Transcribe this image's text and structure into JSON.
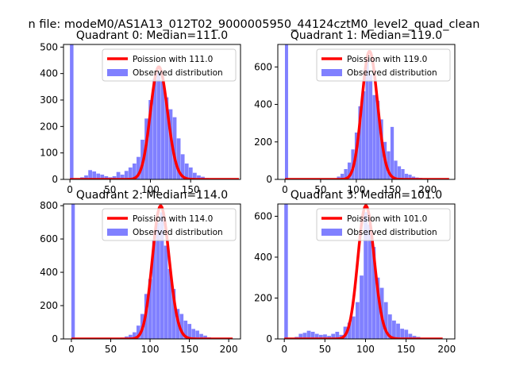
{
  "figure": {
    "suptitle": "n file: modeM0/AS1A13_012T02_9000005950_44124cztM0_level2_quad_clean"
  },
  "colors": {
    "hist": "#8080ff",
    "poisson": "#ff0000",
    "axis": "#000000",
    "background": "#ffffff"
  },
  "chart_data": [
    {
      "type": "bar",
      "title": "Quadrant 0: Median=111.0",
      "median": 111.0,
      "legend": [
        "Poission with 111.0",
        "Observed distribution"
      ],
      "legend_loc": "top-right",
      "xlim": [
        -8,
        212
      ],
      "ylim": [
        0,
        510
      ],
      "xticks": [
        0,
        50,
        100,
        150
      ],
      "yticks": [
        0,
        100,
        200,
        300,
        400,
        500
      ],
      "bin_width": 4.4,
      "zero_bin": 510,
      "bins_x": [
        5,
        10,
        15,
        20,
        25,
        30,
        35,
        40,
        45,
        50,
        55,
        60,
        65,
        70,
        75,
        80,
        85,
        90,
        95,
        100,
        105,
        110,
        115,
        120,
        125,
        130,
        135,
        140,
        145,
        150,
        155,
        160,
        165,
        170,
        175,
        180,
        185,
        190,
        195,
        200,
        205
      ],
      "bins_y": [
        0,
        3,
        8,
        15,
        35,
        30,
        22,
        18,
        12,
        8,
        12,
        28,
        18,
        32,
        45,
        60,
        85,
        150,
        230,
        300,
        380,
        405,
        370,
        310,
        265,
        235,
        155,
        95,
        60,
        45,
        25,
        15,
        10,
        5,
        3,
        2,
        1,
        1,
        0,
        0,
        0
      ],
      "poisson_range": [
        0,
        210
      ],
      "observed_max": 210
    },
    {
      "type": "bar",
      "title": "Quadrant 1: Median=119.0",
      "median": 119.0,
      "legend": [
        "Poission with 119.0",
        "Observed distribution"
      ],
      "legend_loc": "top-right",
      "xlim": [
        -10,
        238
      ],
      "ylim": [
        0,
        720
      ],
      "xticks": [
        0,
        50,
        100,
        150,
        200
      ],
      "yticks": [
        0,
        200,
        400,
        600
      ],
      "bin_width": 4.4,
      "zero_bin": 720,
      "bins_x": [
        70,
        75,
        80,
        85,
        90,
        95,
        100,
        105,
        110,
        115,
        120,
        125,
        130,
        135,
        140,
        145,
        150,
        155,
        160,
        165,
        170,
        175,
        180,
        185,
        190,
        195,
        200
      ],
      "bins_y": [
        5,
        15,
        30,
        55,
        90,
        160,
        250,
        390,
        470,
        650,
        560,
        450,
        420,
        320,
        200,
        150,
        280,
        100,
        70,
        55,
        30,
        25,
        15,
        10,
        8,
        5,
        3
      ],
      "poisson_range": [
        0,
        230
      ],
      "observed_max": 230
    },
    {
      "type": "bar",
      "title": "Quadrant 2: Median=114.0",
      "median": 114.0,
      "legend": [
        "Poission with 114.0",
        "Observed distribution"
      ],
      "legend_loc": "top-right",
      "xlim": [
        -10,
        215
      ],
      "ylim": [
        0,
        810
      ],
      "xticks": [
        0,
        50,
        100,
        150,
        200
      ],
      "yticks": [
        0,
        200,
        400,
        600,
        800
      ],
      "bin_width": 4.4,
      "zero_bin": 810,
      "bins_x": [
        60,
        65,
        70,
        75,
        80,
        85,
        90,
        95,
        100,
        105,
        110,
        115,
        120,
        125,
        130,
        135,
        140,
        145,
        150,
        155,
        160,
        165,
        170,
        175,
        180,
        185,
        190,
        195,
        200
      ],
      "bins_y": [
        3,
        8,
        15,
        25,
        40,
        80,
        150,
        270,
        360,
        590,
        700,
        760,
        560,
        420,
        300,
        180,
        150,
        110,
        90,
        60,
        50,
        30,
        20,
        10,
        5,
        5,
        3,
        1,
        0
      ],
      "poisson_range": [
        0,
        205
      ],
      "observed_max": 205
    },
    {
      "type": "bar",
      "title": "Quadrant 3: Median=101.0",
      "median": 101.0,
      "legend": [
        "Poission with 101.0",
        "Observed distribution"
      ],
      "legend_loc": "top-right",
      "xlim": [
        -8,
        210
      ],
      "ylim": [
        0,
        660
      ],
      "xticks": [
        0,
        50,
        100,
        150,
        200
      ],
      "yticks": [
        0,
        200,
        400,
        600
      ],
      "bin_width": 4.4,
      "zero_bin": 660,
      "bins_x": [
        10,
        15,
        20,
        25,
        30,
        35,
        40,
        45,
        50,
        55,
        60,
        65,
        70,
        75,
        80,
        85,
        90,
        95,
        100,
        105,
        110,
        115,
        120,
        125,
        130,
        135,
        140,
        145,
        150,
        155,
        160,
        165,
        170,
        175,
        180,
        185,
        190,
        195
      ],
      "bins_y": [
        3,
        10,
        25,
        30,
        40,
        35,
        25,
        20,
        22,
        15,
        25,
        35,
        20,
        60,
        80,
        110,
        180,
        310,
        620,
        560,
        450,
        300,
        250,
        180,
        120,
        90,
        75,
        50,
        45,
        25,
        15,
        10,
        5,
        3,
        2,
        1,
        1,
        0
      ],
      "poisson_range": [
        0,
        195
      ],
      "observed_max": 195
    }
  ]
}
